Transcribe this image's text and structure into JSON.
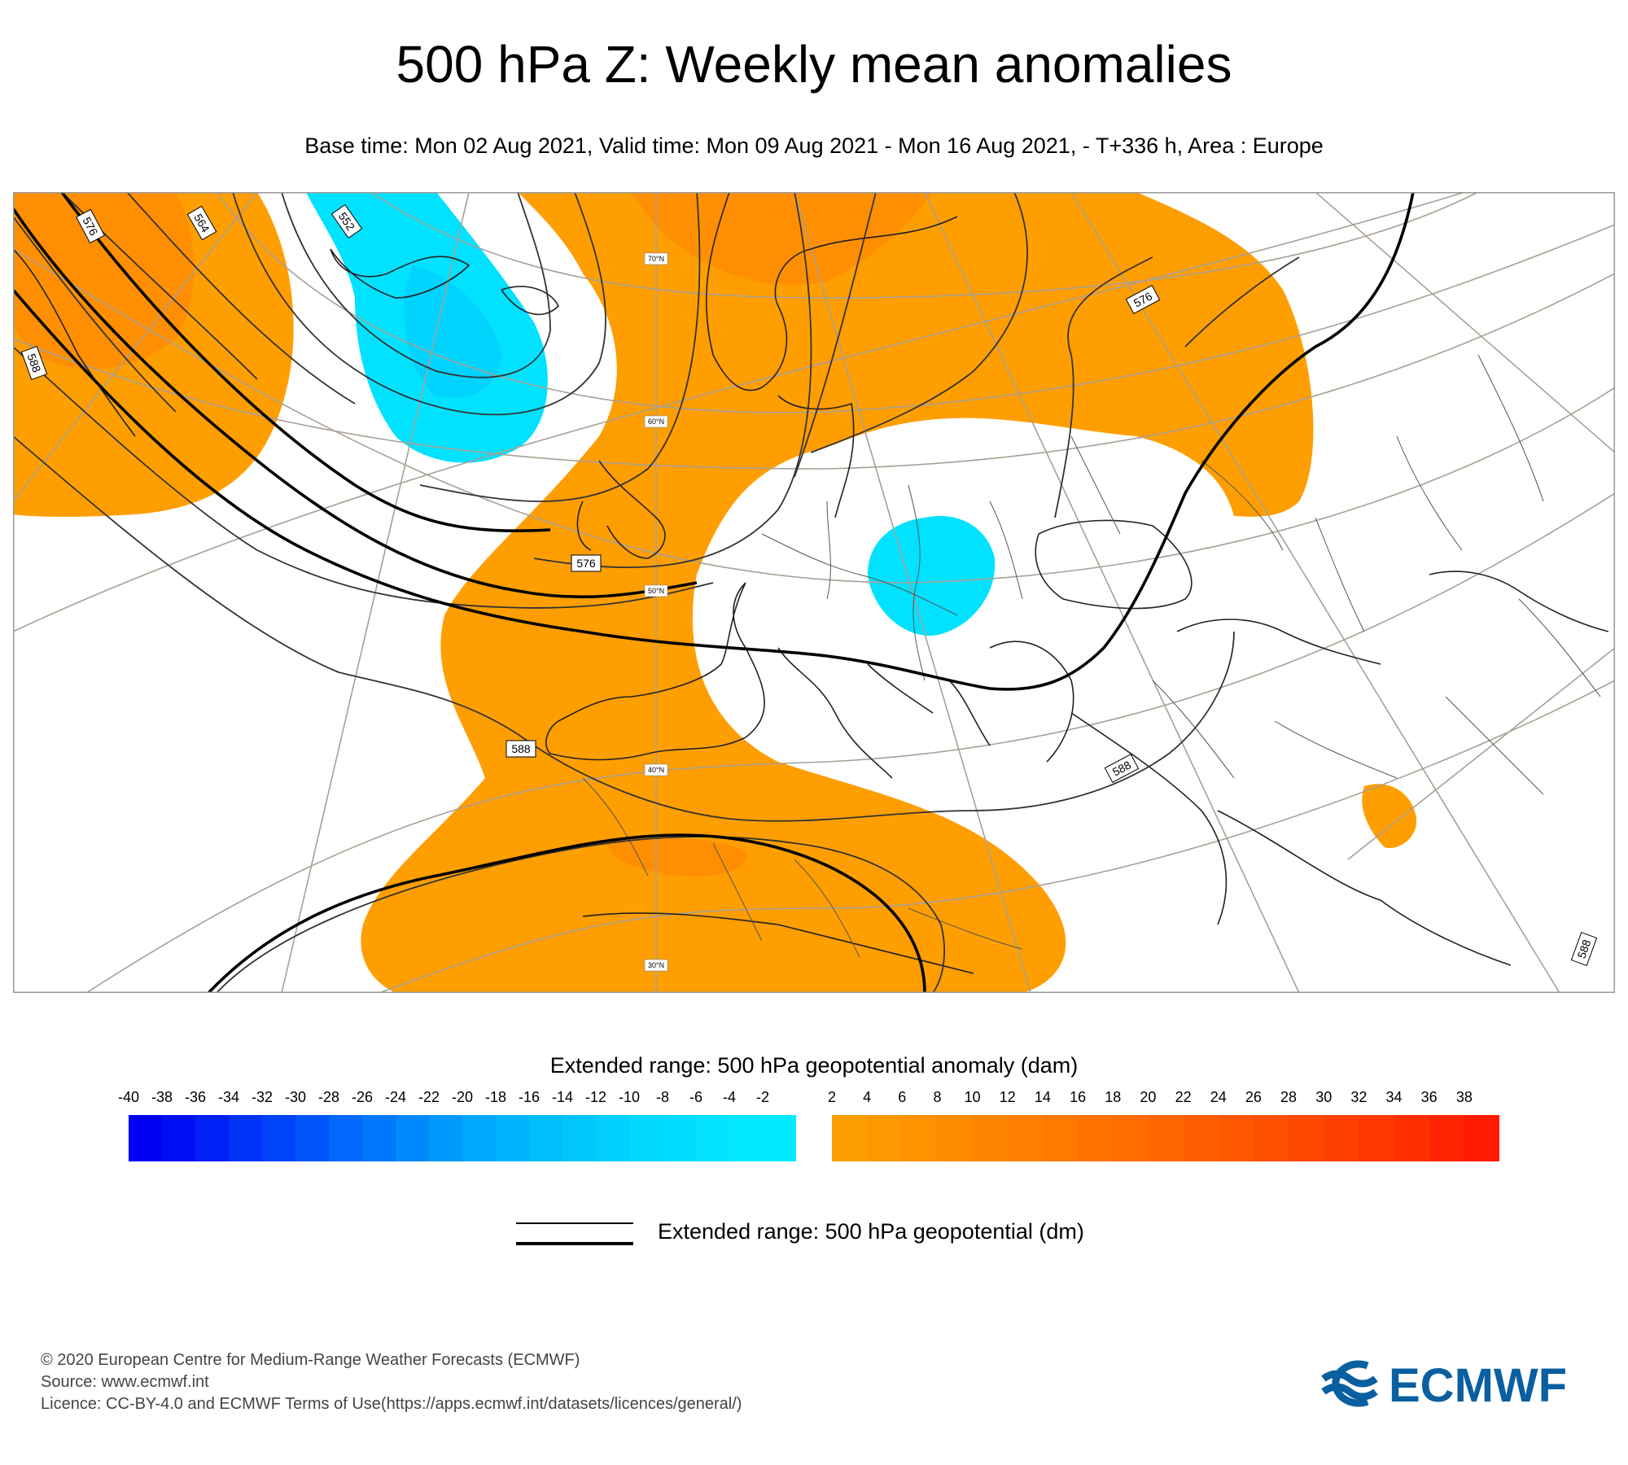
{
  "title": "500 hPa Z: Weekly mean anomalies",
  "subtitle": "Base time: Mon 02 Aug 2021, Valid time: Mon 09 Aug 2021 - Mon 16 Aug 2021, - T+336 h, Area : Europe",
  "map": {
    "contour_labels": [
      "576",
      "564",
      "552",
      "588",
      "576",
      "576",
      "588",
      "588",
      "588"
    ],
    "lat_labels": [
      "70°N",
      "60°N",
      "50°N",
      "40°N",
      "30°N"
    ]
  },
  "legend": {
    "anomaly_title": "Extended range: 500 hPa geopotential anomaly (dam)",
    "negative_ticks": [
      "-40",
      "-38",
      "-36",
      "-34",
      "-32",
      "-30",
      "-28",
      "-26",
      "-24",
      "-22",
      "-20",
      "-18",
      "-16",
      "-14",
      "-12",
      "-10",
      "-8",
      "-6",
      "-4",
      "-2"
    ],
    "positive_ticks": [
      "2",
      "4",
      "6",
      "8",
      "10",
      "12",
      "14",
      "16",
      "18",
      "20",
      "22",
      "24",
      "26",
      "28",
      "30",
      "32",
      "34",
      "36",
      "38"
    ],
    "negative_colors": [
      "#0000f5",
      "#000ef5",
      "#0020f8",
      "#0032f8",
      "#0044fa",
      "#0056fa",
      "#0068fb",
      "#0078fb",
      "#0089fc",
      "#009afc",
      "#00a8fc",
      "#00b3fd",
      "#00bdfd",
      "#00c6fe",
      "#00cffe",
      "#00d6fe",
      "#00dcfe",
      "#00e2ff",
      "#00e8ff",
      "#00eaff"
    ],
    "positive_colors": [
      "#ff9e00",
      "#ff9800",
      "#ff9200",
      "#ff8c00",
      "#ff8500",
      "#ff7f00",
      "#ff7800",
      "#ff7200",
      "#ff6c00",
      "#ff6500",
      "#ff5e00",
      "#ff5700",
      "#ff5000",
      "#ff4800",
      "#ff4000",
      "#ff3800",
      "#ff2f00",
      "#ff2500",
      "#ff1a00"
    ],
    "geopotential_label": "Extended range: 500 hPa geopotential (dm)"
  },
  "footer": {
    "line1": "© 2020 European Centre for Medium-Range Weather Forecasts (ECMWF)",
    "line2": "Source: www.ecmwf.int",
    "line3": "Licence: CC-BY-4.0 and ECMWF Terms of Use(https://apps.ecmwf.int/datasets/licences/general/)"
  },
  "logo_text": "ECMWF",
  "colors": {
    "anomaly_positive": "#ff9e00",
    "anomaly_positive_strong": "#ff8c00",
    "anomaly_negative": "#00e2ff",
    "anomaly_negative_strong": "#00cffe",
    "brand": "#0a5fa0"
  }
}
